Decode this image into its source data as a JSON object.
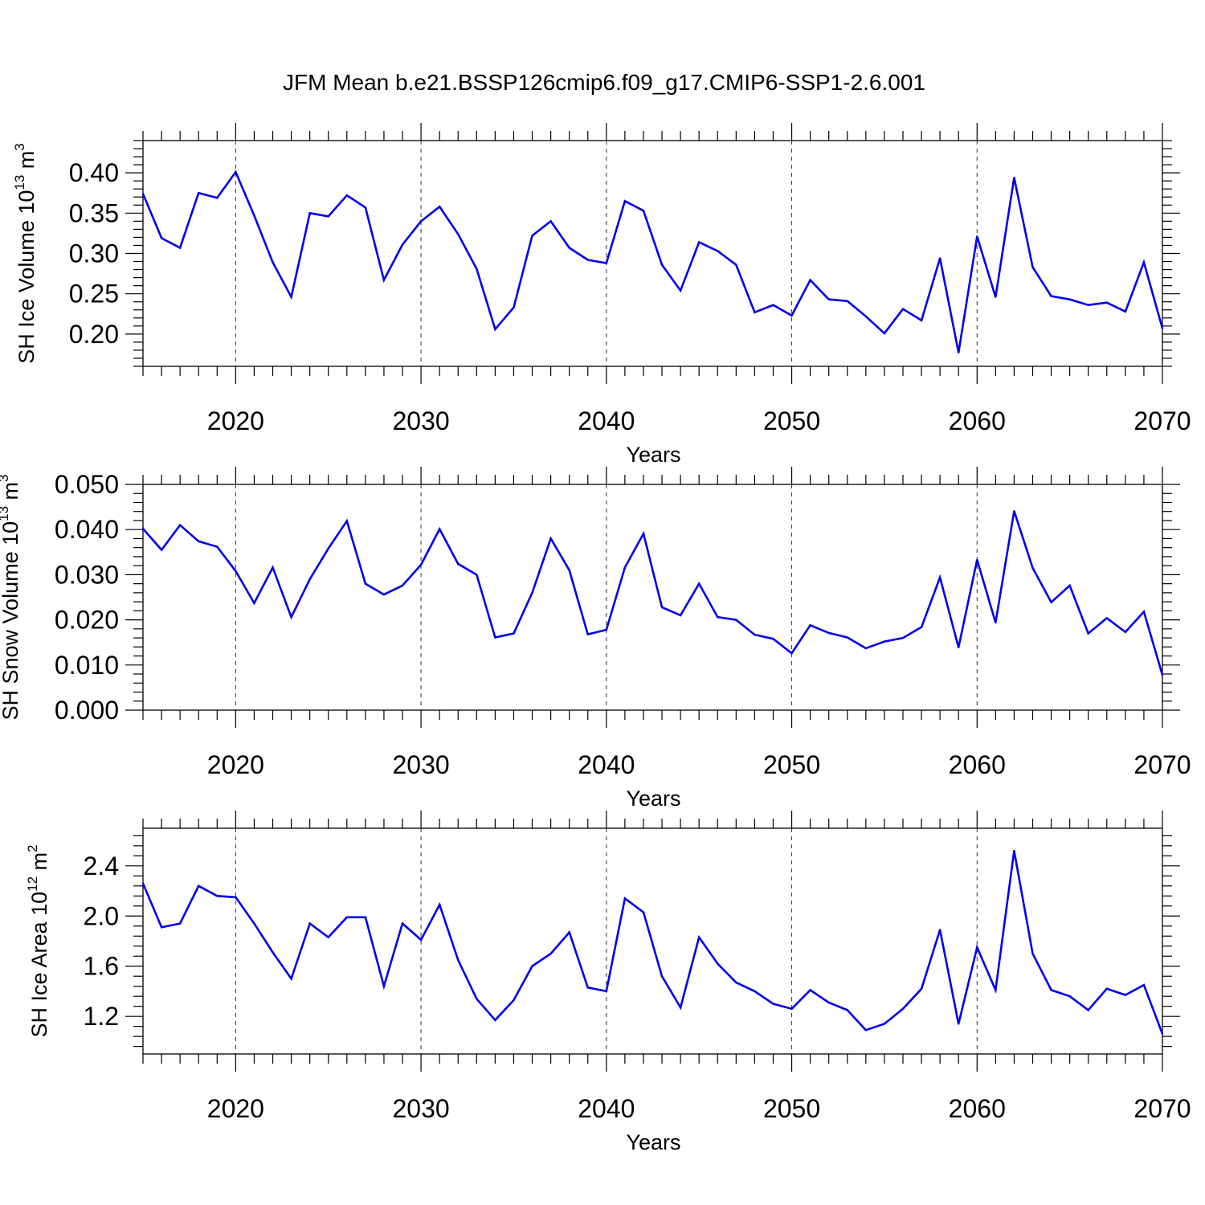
{
  "title": "JFM Mean b.e21.BSSP126cmip6.f09_g17.CMIP6-SSP1-2.6.001",
  "chart_data": [
    {
      "type": "line",
      "title": "JFM Mean b.e21.BSSP126cmip6.f09_g17.CMIP6-SSP1-2.6.001",
      "xlabel": "Years",
      "ylabel": "SH Ice Volume 10",
      "ylabel_exp": "13",
      "ylabel_unit": " m",
      "ylabel_unit_exp": "3",
      "xlim": [
        2015,
        2070
      ],
      "ylim": [
        0.16,
        0.44
      ],
      "xticks": [
        2020,
        2030,
        2040,
        2050,
        2060,
        2070
      ],
      "yticks": [
        0.2,
        0.25,
        0.3,
        0.35,
        0.4
      ],
      "ytick_labels": [
        "0.20",
        "0.25",
        "0.30",
        "0.35",
        "0.40"
      ],
      "grid": "vertical dashed at major x ticks",
      "color": "#0000ee",
      "x": [
        2015,
        2016,
        2017,
        2018,
        2019,
        2020,
        2021,
        2022,
        2023,
        2024,
        2025,
        2026,
        2027,
        2028,
        2029,
        2030,
        2031,
        2032,
        2033,
        2034,
        2035,
        2036,
        2037,
        2038,
        2039,
        2040,
        2041,
        2042,
        2043,
        2044,
        2045,
        2046,
        2047,
        2048,
        2049,
        2050,
        2051,
        2052,
        2053,
        2054,
        2055,
        2056,
        2057,
        2058,
        2059,
        2060,
        2061,
        2062,
        2063,
        2064,
        2065,
        2066,
        2067,
        2068,
        2069,
        2070
      ],
      "values": [
        0.374,
        0.319,
        0.307,
        0.375,
        0.369,
        0.401,
        0.347,
        0.289,
        0.246,
        0.35,
        0.346,
        0.372,
        0.357,
        0.267,
        0.311,
        0.34,
        0.358,
        0.324,
        0.281,
        0.206,
        0.233,
        0.322,
        0.34,
        0.307,
        0.292,
        0.288,
        0.365,
        0.353,
        0.286,
        0.254,
        0.314,
        0.303,
        0.286,
        0.227,
        0.236,
        0.223,
        0.267,
        0.243,
        0.241,
        0.222,
        0.201,
        0.231,
        0.217,
        0.294,
        0.177,
        0.321,
        0.246,
        0.394,
        0.283,
        0.247,
        0.243,
        0.236,
        0.239,
        0.228,
        0.289,
        0.207
      ]
    },
    {
      "type": "line",
      "xlabel": "Years",
      "ylabel": "SH Snow Volume 10",
      "ylabel_exp": "13",
      "ylabel_unit": " m",
      "ylabel_unit_exp": "3",
      "xlim": [
        2015,
        2070
      ],
      "ylim": [
        0.0,
        0.05
      ],
      "xticks": [
        2020,
        2030,
        2040,
        2050,
        2060,
        2070
      ],
      "yticks": [
        0.0,
        0.01,
        0.02,
        0.03,
        0.04,
        0.05
      ],
      "ytick_labels": [
        "0.000",
        "0.010",
        "0.020",
        "0.030",
        "0.040",
        "0.050"
      ],
      "grid": "vertical dashed at major x ticks",
      "color": "#0000ee",
      "x": [
        2015,
        2016,
        2017,
        2018,
        2019,
        2020,
        2021,
        2022,
        2023,
        2024,
        2025,
        2026,
        2027,
        2028,
        2029,
        2030,
        2031,
        2032,
        2033,
        2034,
        2035,
        2036,
        2037,
        2038,
        2039,
        2040,
        2041,
        2042,
        2043,
        2044,
        2045,
        2046,
        2047,
        2048,
        2049,
        2050,
        2051,
        2052,
        2053,
        2054,
        2055,
        2056,
        2057,
        2058,
        2059,
        2060,
        2061,
        2062,
        2063,
        2064,
        2065,
        2066,
        2067,
        2068,
        2069,
        2070
      ],
      "values": [
        0.0402,
        0.0355,
        0.041,
        0.0374,
        0.0362,
        0.0308,
        0.0237,
        0.0316,
        0.0206,
        0.029,
        0.0358,
        0.0419,
        0.028,
        0.0256,
        0.0276,
        0.0322,
        0.0401,
        0.0324,
        0.03,
        0.0161,
        0.017,
        0.026,
        0.038,
        0.031,
        0.0168,
        0.0178,
        0.0316,
        0.0391,
        0.0228,
        0.021,
        0.028,
        0.0206,
        0.02,
        0.0167,
        0.0158,
        0.0126,
        0.0188,
        0.0171,
        0.0161,
        0.0137,
        0.0152,
        0.016,
        0.0184,
        0.0294,
        0.0139,
        0.0333,
        0.0194,
        0.0441,
        0.0315,
        0.0239,
        0.0276,
        0.017,
        0.0204,
        0.0173,
        0.0218,
        0.0078
      ]
    },
    {
      "type": "line",
      "xlabel": "Years",
      "ylabel": "SH Ice Area 10",
      "ylabel_exp": "12",
      "ylabel_unit": " m",
      "ylabel_unit_exp": "2",
      "xlim": [
        2015,
        2070
      ],
      "ylim": [
        0.9,
        2.7
      ],
      "xticks": [
        2020,
        2030,
        2040,
        2050,
        2060,
        2070
      ],
      "yticks": [
        1.2,
        1.6,
        2.0,
        2.4
      ],
      "ytick_labels": [
        "1.2",
        "1.6",
        "2.0",
        "2.4"
      ],
      "grid": "vertical dashed at major x ticks",
      "color": "#0000ee",
      "x": [
        2015,
        2016,
        2017,
        2018,
        2019,
        2020,
        2021,
        2022,
        2023,
        2024,
        2025,
        2026,
        2027,
        2028,
        2029,
        2030,
        2031,
        2032,
        2033,
        2034,
        2035,
        2036,
        2037,
        2038,
        2039,
        2040,
        2041,
        2042,
        2043,
        2044,
        2045,
        2046,
        2047,
        2048,
        2049,
        2050,
        2051,
        2052,
        2053,
        2054,
        2055,
        2056,
        2057,
        2058,
        2059,
        2060,
        2061,
        2062,
        2063,
        2064,
        2065,
        2066,
        2067,
        2068,
        2069,
        2070
      ],
      "values": [
        2.26,
        1.91,
        1.94,
        2.24,
        2.16,
        2.15,
        1.94,
        1.71,
        1.5,
        1.94,
        1.83,
        1.99,
        1.99,
        1.44,
        1.94,
        1.81,
        2.09,
        1.65,
        1.34,
        1.17,
        1.33,
        1.6,
        1.7,
        1.87,
        1.43,
        1.4,
        2.14,
        2.03,
        1.52,
        1.27,
        1.83,
        1.62,
        1.47,
        1.4,
        1.3,
        1.26,
        1.41,
        1.31,
        1.25,
        1.09,
        1.14,
        1.26,
        1.42,
        1.89,
        1.14,
        1.75,
        1.41,
        2.52,
        1.7,
        1.41,
        1.36,
        1.25,
        1.42,
        1.37,
        1.45,
        1.06
      ]
    }
  ]
}
